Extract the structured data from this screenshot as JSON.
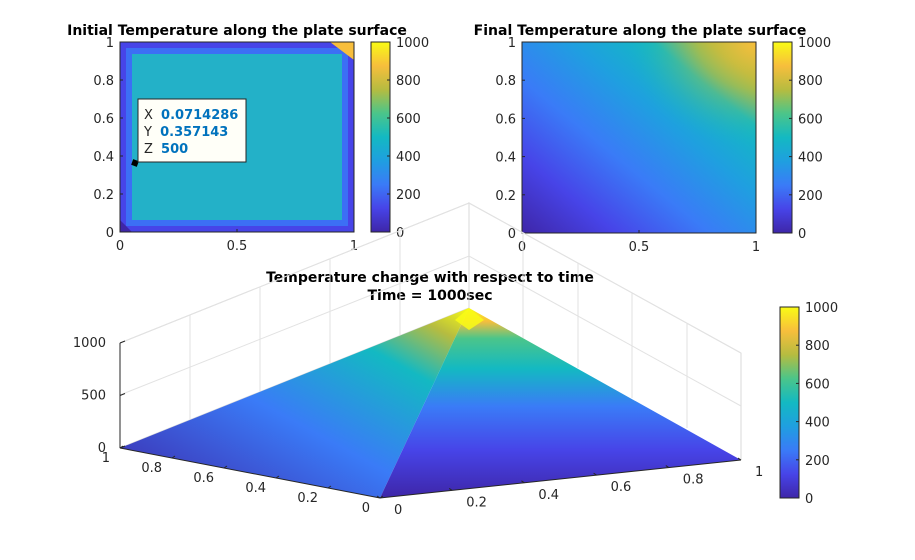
{
  "colormap": "parula",
  "chart_data": [
    {
      "type": "heatmap",
      "title": "Initial Temperature along the plate surface",
      "xlim": [
        0,
        1
      ],
      "ylim": [
        0,
        1
      ],
      "clim": [
        0,
        1000
      ],
      "x_ticks": [
        "0",
        "0.5",
        "1"
      ],
      "y_ticks": [
        "0",
        "0.2",
        "0.4",
        "0.6",
        "0.8",
        "1"
      ],
      "colorbar_ticks": [
        "0",
        "200",
        "400",
        "600",
        "800",
        "1000"
      ],
      "interior_value": 500,
      "boundary_value": 0,
      "corner_value_top_right": 1000,
      "datatip": {
        "x_label": "X",
        "x_value": "0.0714286",
        "y_label": "Y",
        "y_value": "0.357143",
        "z_label": "Z",
        "z_value": "500",
        "x": 0.0714286,
        "y": 0.357143,
        "z": 500
      }
    },
    {
      "type": "heatmap",
      "title": "Final Temperature along the plate surface",
      "xlim": [
        0,
        1
      ],
      "ylim": [
        0,
        1
      ],
      "clim": [
        0,
        1000
      ],
      "x_ticks": [
        "0",
        "0.5",
        "1"
      ],
      "y_ticks": [
        "0",
        "0.2",
        "0.4",
        "0.6",
        "0.8",
        "1"
      ],
      "colorbar_ticks": [
        "0",
        "200",
        "400",
        "600",
        "800",
        "1000"
      ],
      "value_at_origin": 0,
      "value_at_top_right": 1000
    },
    {
      "type": "surface",
      "title_line1": "Temperature change with respect to time",
      "title_line2": "Time = 1000sec",
      "xlim": [
        0,
        1
      ],
      "ylim": [
        0,
        1
      ],
      "zlim": [
        0,
        1000
      ],
      "clim": [
        0,
        1000
      ],
      "x_ticks": [
        "0",
        "0.2",
        "0.4",
        "0.6",
        "0.8",
        "1"
      ],
      "y_ticks": [
        "0",
        "0.2",
        "0.4",
        "0.6",
        "0.8",
        "1"
      ],
      "z_ticks": [
        "0",
        "500",
        "1000"
      ],
      "colorbar_ticks": [
        "0",
        "200",
        "400",
        "600",
        "800",
        "1000"
      ],
      "grid": true,
      "peak_value": 1000
    }
  ]
}
